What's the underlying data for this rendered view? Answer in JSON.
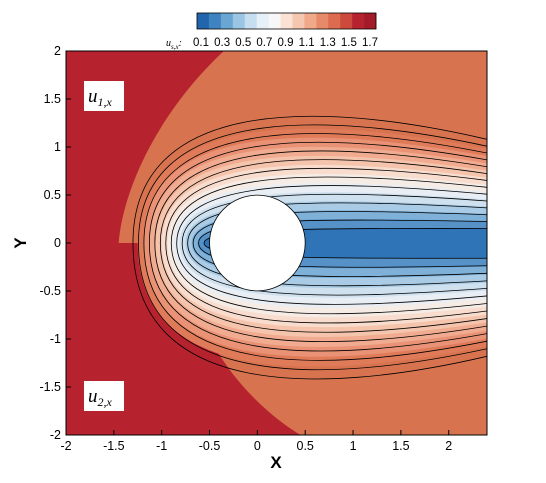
{
  "chart_data": {
    "type": "contour",
    "title": "",
    "xlabel": "X",
    "ylabel": "Y",
    "xlim": [
      -2,
      2.4
    ],
    "ylim": [
      -2,
      2
    ],
    "xticks": [
      "-2",
      "-1.5",
      "-1",
      "-0.5",
      "0",
      "0.5",
      "1",
      "1.5",
      "2"
    ],
    "xtick_values": [
      -2,
      -1.5,
      -1,
      -0.5,
      0,
      0.5,
      1,
      1.5,
      2
    ],
    "yticks": [
      "2",
      "1.5",
      "1",
      "0.5",
      "0",
      "-0.5",
      "-1",
      "-1.5",
      "-2"
    ],
    "ytick_values": [
      2,
      1.5,
      1,
      0.5,
      0,
      -0.5,
      -1,
      -1.5,
      -2
    ],
    "colorbar": {
      "variable": "u",
      "variable_sub": "s,x",
      "suffix": ":",
      "levels": [
        0.1,
        0.3,
        0.5,
        0.7,
        0.9,
        1.1,
        1.3,
        1.5,
        1.7
      ],
      "labels": [
        "0.1",
        "0.3",
        "0.5",
        "0.7",
        "0.9",
        "1.1",
        "1.3",
        "1.5",
        "1.7"
      ],
      "colors": [
        "#2166ac",
        "#3f84c0",
        "#6aa6d2",
        "#9ac5e3",
        "#c7def0",
        "#e6f0f8",
        "#f7f7f7",
        "#fbe2d4",
        "#f6c7b0",
        "#f0a98a",
        "#e78a6a",
        "#dd6b50",
        "#cc4a3c",
        "#b7222f",
        "#a31a28"
      ]
    },
    "obstacle": {
      "shape": "circle",
      "center": [
        0,
        0
      ],
      "radius": 0.5
    },
    "interface": {
      "x_start": -1.45,
      "x_end": -0.7,
      "y": 0
    },
    "region_labels": [
      {
        "base": "u",
        "sub": "1,x"
      },
      {
        "base": "u",
        "sub": "2,x"
      }
    ]
  }
}
